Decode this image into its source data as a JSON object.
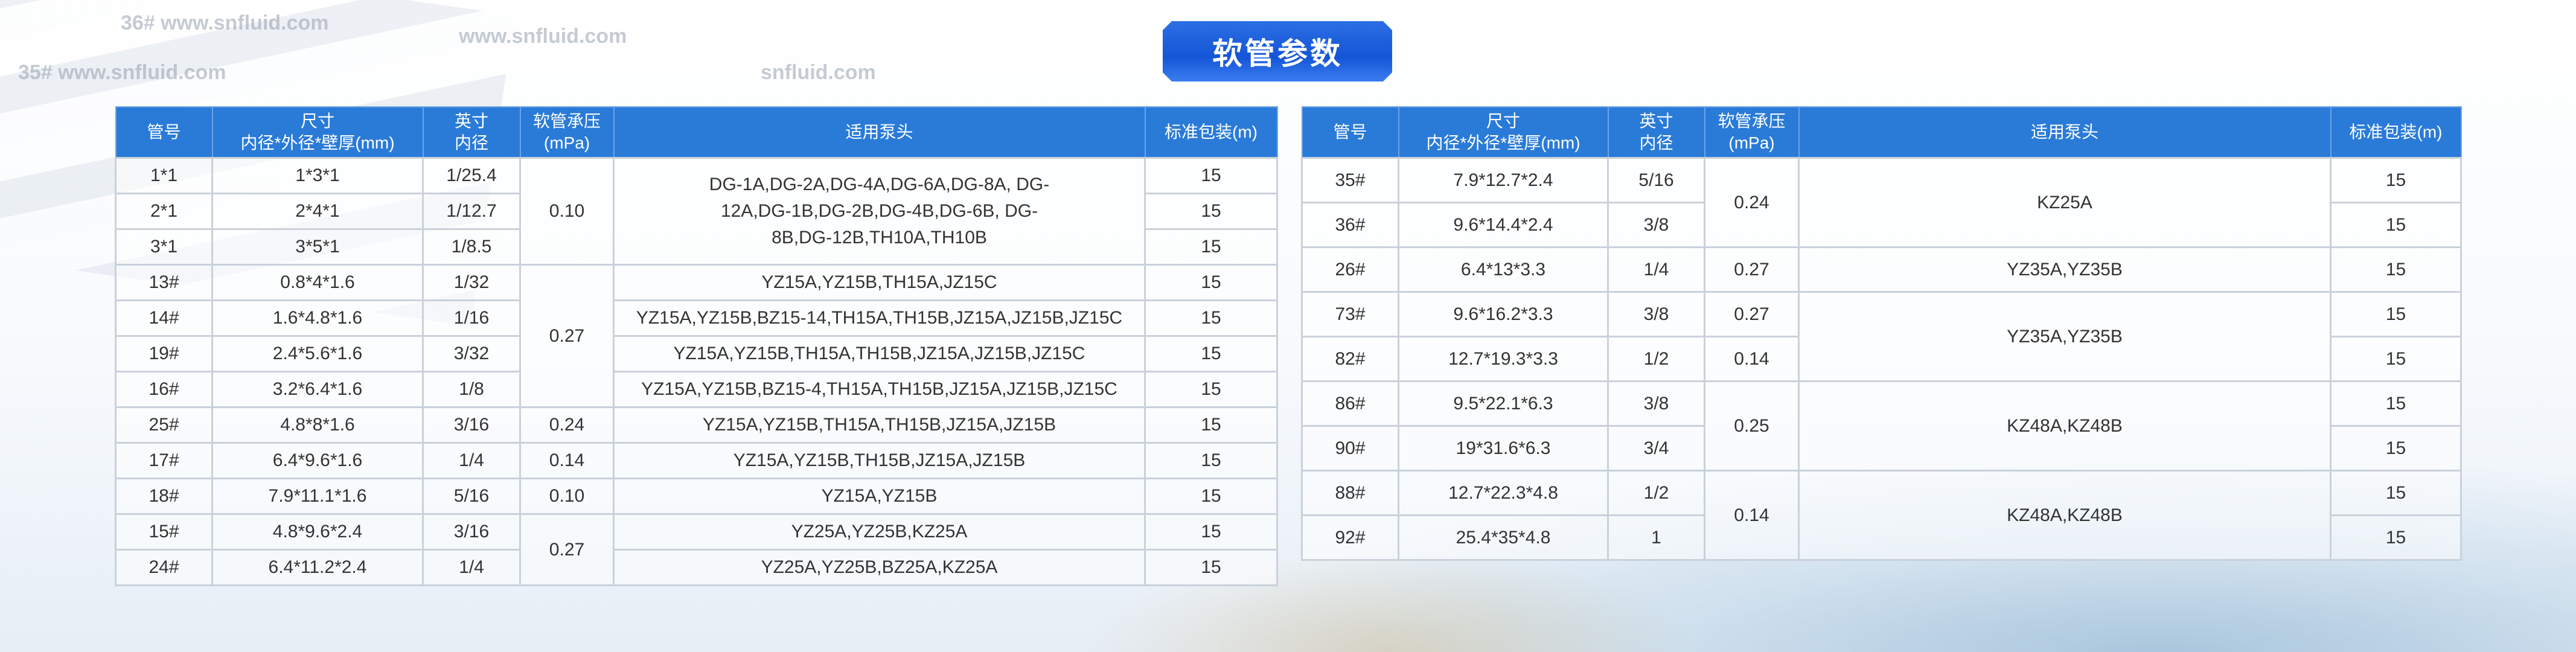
{
  "title": "软管参数",
  "watermarks": [
    "36#  www.snfluid.com",
    "35#  www.snfluid.com",
    "www.snfluid.com",
    "snfluid.com"
  ],
  "headers": {
    "tube_no": "管号",
    "size_line1": "尺寸",
    "size_line2": "内径*外径*壁厚(mm)",
    "inch_line1": "英寸",
    "inch_line2": "内径",
    "pressure_line1": "软管承压",
    "pressure_line2": "(mPa)",
    "pump": "适用泵头",
    "package": "标准包装(m)"
  },
  "left_table": [
    {
      "no": "1*1",
      "size": "1*3*1",
      "inch": "1/25.4",
      "pressure": "0.10",
      "pump": "DG-1A,DG-2A,DG-4A,DG-6A,DG-8A, DG-12A,DG-1B,DG-2B,DG-4B,DG-6B, DG-8B,DG-12B,TH10A,TH10B",
      "pack": "15"
    },
    {
      "no": "2*1",
      "size": "2*4*1",
      "inch": "1/12.7",
      "pressure": null,
      "pump": null,
      "pack": "15"
    },
    {
      "no": "3*1",
      "size": "3*5*1",
      "inch": "1/8.5",
      "pressure": null,
      "pump": null,
      "pack": "15"
    },
    {
      "no": "13#",
      "size": "0.8*4*1.6",
      "inch": "1/32",
      "pressure": "0.27",
      "pump": "YZ15A,YZ15B,TH15A,JZ15C",
      "pack": "15"
    },
    {
      "no": "14#",
      "size": "1.6*4.8*1.6",
      "inch": "1/16",
      "pressure": null,
      "pump": "YZ15A,YZ15B,BZ15-14,TH15A,TH15B,JZ15A,JZ15B,JZ15C",
      "pack": "15"
    },
    {
      "no": "19#",
      "size": "2.4*5.6*1.6",
      "inch": "3/32",
      "pressure": null,
      "pump": "YZ15A,YZ15B,TH15A,TH15B,JZ15A,JZ15B,JZ15C",
      "pack": "15"
    },
    {
      "no": "16#",
      "size": "3.2*6.4*1.6",
      "inch": "1/8",
      "pressure": null,
      "pump": "YZ15A,YZ15B,BZ15-4,TH15A,TH15B,JZ15A,JZ15B,JZ15C",
      "pack": "15"
    },
    {
      "no": "25#",
      "size": "4.8*8*1.6",
      "inch": "3/16",
      "pressure": "0.24",
      "pump": "YZ15A,YZ15B,TH15A,TH15B,JZ15A,JZ15B",
      "pack": "15"
    },
    {
      "no": "17#",
      "size": "6.4*9.6*1.6",
      "inch": "1/4",
      "pressure": "0.14",
      "pump": "YZ15A,YZ15B,TH15B,JZ15A,JZ15B",
      "pack": "15"
    },
    {
      "no": "18#",
      "size": "7.9*11.1*1.6",
      "inch": "5/16",
      "pressure": "0.10",
      "pump": "YZ15A,YZ15B",
      "pack": "15"
    },
    {
      "no": "15#",
      "size": "4.8*9.6*2.4",
      "inch": "3/16",
      "pressure": "0.27",
      "pump": "YZ25A,YZ25B,KZ25A",
      "pack": "15"
    },
    {
      "no": "24#",
      "size": "6.4*11.2*2.4",
      "inch": "1/4",
      "pressure": null,
      "pump": "YZ25A,YZ25B,BZ25A,KZ25A",
      "pack": "15"
    }
  ],
  "right_table": [
    {
      "no": "35#",
      "size": "7.9*12.7*2.4",
      "inch": "5/16",
      "pressure": "0.24",
      "pump": "KZ25A",
      "pack": "15"
    },
    {
      "no": "36#",
      "size": "9.6*14.4*2.4",
      "inch": "3/8",
      "pressure": null,
      "pump": null,
      "pack": "15"
    },
    {
      "no": "26#",
      "size": "6.4*13*3.3",
      "inch": "1/4",
      "pressure": "0.27",
      "pump": "YZ35A,YZ35B",
      "pack": "15"
    },
    {
      "no": "73#",
      "size": "9.6*16.2*3.3",
      "inch": "3/8",
      "pressure": "0.27",
      "pump": "YZ35A,YZ35B",
      "pack": "15"
    },
    {
      "no": "82#",
      "size": "12.7*19.3*3.3",
      "inch": "1/2",
      "pressure": "0.14",
      "pump": null,
      "pack": "15"
    },
    {
      "no": "86#",
      "size": "9.5*22.1*6.3",
      "inch": "3/8",
      "pressure": "0.25",
      "pump": "KZ48A,KZ48B",
      "pack": "15"
    },
    {
      "no": "90#",
      "size": "19*31.6*6.3",
      "inch": "3/4",
      "pressure": null,
      "pump": null,
      "pack": "15"
    },
    {
      "no": "88#",
      "size": "12.7*22.3*4.8",
      "inch": "1/2",
      "pressure": "0.14",
      "pump": "KZ48A,KZ48B",
      "pack": "15"
    },
    {
      "no": "92#",
      "size": "25.4*35*4.8",
      "inch": "1",
      "pressure": null,
      "pump": null,
      "pack": "15"
    }
  ],
  "colors": {
    "header_bg": "#2a7bd8",
    "title_bg": "#1455d6",
    "border": "#c9d1db"
  }
}
